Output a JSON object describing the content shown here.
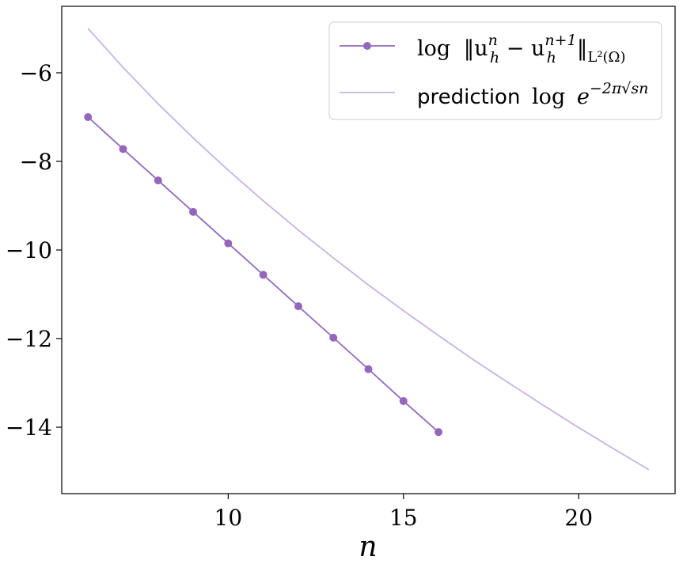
{
  "chart_data": {
    "type": "line",
    "xlabel": "n",
    "ylabel": "",
    "xlim": [
      5.25,
      22.75
    ],
    "ylim": [
      -15.5,
      -4.5
    ],
    "x_ticks": [
      10,
      15,
      20
    ],
    "y_ticks": [
      -14,
      -12,
      -10,
      -8,
      -6
    ],
    "x_tick_labels": [
      "10",
      "15",
      "20"
    ],
    "y_tick_labels": [
      "−14",
      "−12",
      "−10",
      "−8",
      "−6"
    ],
    "grid": false,
    "legend_position": "top-right",
    "legend": {
      "entry1": {
        "log": "log",
        "norm_expr": "‖u",
        "sub1": "h",
        "sup1": "n",
        "minus": " − u",
        "sub2": "h",
        "sup2": "n+1",
        "norm_close": "‖",
        "norm_sub": "L²(Ω)"
      },
      "entry2": {
        "word": "prediction",
        "log": "log",
        "base": "e",
        "exponent": "−2π√sn"
      }
    },
    "series": [
      {
        "name": "log ‖u_h^n − u_h^{n+1}‖_{L²(Ω)}",
        "color": "#9467bd",
        "marker": "circle",
        "x": [
          6,
          7,
          8,
          9,
          10,
          11,
          12,
          13,
          14,
          15,
          16
        ],
        "y": [
          -7.0,
          -7.72,
          -8.43,
          -9.14,
          -9.85,
          -10.56,
          -11.27,
          -11.98,
          -12.69,
          -13.41,
          -14.11
        ]
      },
      {
        "name": "prediction log e^{−2π√sn}",
        "color": "#c9b3e0",
        "marker": "none",
        "x": [
          6,
          7,
          8,
          9,
          10,
          11,
          12,
          13,
          14,
          15,
          16,
          17,
          18,
          19,
          20,
          21,
          22
        ],
        "y": [
          -5.0,
          -5.88,
          -6.7,
          -7.47,
          -8.2,
          -8.89,
          -9.55,
          -10.18,
          -10.79,
          -11.37,
          -11.93,
          -12.48,
          -13.0,
          -13.51,
          -14.01,
          -14.49,
          -14.96
        ]
      }
    ]
  }
}
